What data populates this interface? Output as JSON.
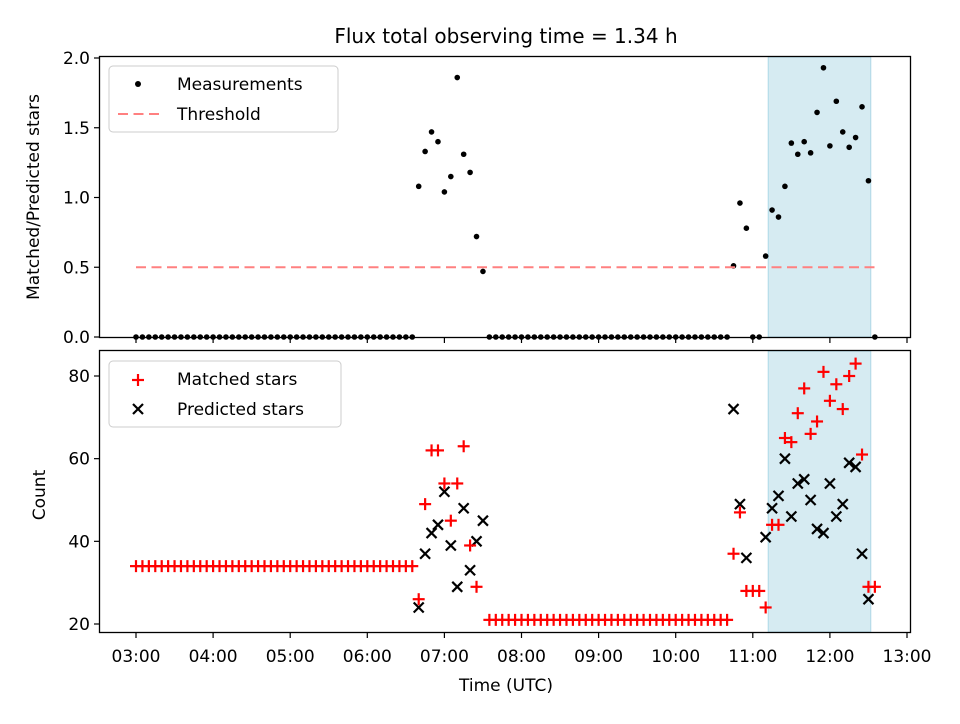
{
  "chart_data": [
    {
      "type": "scatter",
      "title": "Flux total observing time = 1.34 h",
      "xlabel": "",
      "ylabel": "Matched/Predicted stars",
      "ylim": [
        0,
        2.0
      ],
      "yticks": [
        "0.0",
        "0.5",
        "1.0",
        "1.5",
        "2.0"
      ],
      "xlim_hours": [
        2.5,
        13.05
      ],
      "xticks": [
        "03:00",
        "04:00",
        "05:00",
        "06:00",
        "07:00",
        "08:00",
        "09:00",
        "10:00",
        "11:00",
        "12:00",
        "13:00"
      ],
      "sample_start_hour": 3.0,
      "sample_step_minutes": 5,
      "threshold": {
        "name": "Threshold",
        "value": 0.5,
        "color": "#ff8080",
        "style": "dashed"
      },
      "highlight_span_hours": [
        11.2,
        12.53
      ],
      "highlight_color": "#add8e6",
      "series": [
        {
          "name": "Measurements",
          "color": "#000000",
          "marker": "dot",
          "values": [
            0,
            0,
            0,
            0,
            0,
            0,
            0,
            0,
            0,
            0,
            0,
            0,
            0,
            0,
            0,
            0,
            0,
            0,
            0,
            0,
            0,
            0,
            0,
            0,
            0,
            0,
            0,
            0,
            0,
            0,
            0,
            0,
            0,
            0,
            0,
            0,
            0,
            0,
            0,
            0,
            0,
            0,
            0,
            0,
            1.08,
            1.33,
            1.47,
            1.4,
            1.04,
            1.15,
            1.86,
            1.31,
            1.18,
            0.72,
            0.47,
            0,
            0,
            0,
            0,
            0,
            0,
            0,
            0,
            0,
            0,
            0,
            0,
            0,
            0,
            0,
            0,
            0,
            0,
            0,
            0,
            0,
            0,
            0,
            0,
            0,
            0,
            0,
            0,
            0,
            0,
            0,
            0,
            0,
            0,
            0,
            0,
            0,
            0,
            0.51,
            0.96,
            0.78,
            0,
            0,
            0.58,
            0.91,
            0.86,
            1.08,
            1.39,
            1.31,
            1.4,
            1.32,
            1.61,
            1.93,
            1.37,
            1.69,
            1.47,
            1.36,
            1.43,
            1.65,
            1.12,
            0
          ]
        }
      ],
      "legend": {
        "placement": "top-left",
        "entries": [
          "Measurements",
          "Threshold"
        ]
      }
    },
    {
      "type": "scatter",
      "title": "",
      "xlabel": "Time (UTC)",
      "ylabel": "Count",
      "ylim": [
        18,
        86
      ],
      "yticks": [
        "20",
        "40",
        "60",
        "80"
      ],
      "xticks": [
        "03:00",
        "04:00",
        "05:00",
        "06:00",
        "07:00",
        "08:00",
        "09:00",
        "10:00",
        "11:00",
        "12:00",
        "13:00"
      ],
      "sample_start_hour": 3.0,
      "sample_step_minutes": 5,
      "highlight_span_hours": [
        11.2,
        12.53
      ],
      "series": [
        {
          "name": "Matched stars",
          "color": "#ff0000",
          "marker": "plus",
          "values": [
            34,
            34,
            34,
            34,
            34,
            34,
            34,
            34,
            34,
            34,
            34,
            34,
            34,
            34,
            34,
            34,
            34,
            34,
            34,
            34,
            34,
            34,
            34,
            34,
            34,
            34,
            34,
            34,
            34,
            34,
            34,
            34,
            34,
            34,
            34,
            34,
            34,
            34,
            34,
            34,
            34,
            34,
            34,
            34,
            26,
            49,
            62,
            62,
            54,
            45,
            54,
            63,
            39,
            29,
            null,
            21,
            21,
            21,
            21,
            21,
            21,
            21,
            21,
            21,
            21,
            21,
            21,
            21,
            21,
            21,
            21,
            21,
            21,
            21,
            21,
            21,
            21,
            21,
            21,
            21,
            21,
            21,
            21,
            21,
            21,
            21,
            21,
            21,
            21,
            21,
            21,
            21,
            21,
            37,
            47,
            28,
            28,
            28,
            24,
            44,
            44,
            65,
            64,
            71,
            77,
            66,
            69,
            81,
            74,
            78,
            72,
            80,
            83,
            61,
            29,
            29
          ]
        },
        {
          "name": "Predicted stars",
          "color": "#000000",
          "marker": "x",
          "values": [
            null,
            null,
            null,
            null,
            null,
            null,
            null,
            null,
            null,
            null,
            null,
            null,
            null,
            null,
            null,
            null,
            null,
            null,
            null,
            null,
            null,
            null,
            null,
            null,
            null,
            null,
            null,
            null,
            null,
            null,
            null,
            null,
            null,
            null,
            null,
            null,
            null,
            null,
            null,
            null,
            null,
            null,
            null,
            null,
            24,
            37,
            42,
            44,
            52,
            39,
            29,
            48,
            33,
            40,
            45,
            null,
            null,
            null,
            null,
            null,
            null,
            null,
            null,
            null,
            null,
            null,
            null,
            null,
            null,
            null,
            null,
            null,
            null,
            null,
            null,
            null,
            null,
            null,
            null,
            null,
            null,
            null,
            null,
            null,
            null,
            null,
            null,
            null,
            null,
            null,
            null,
            null,
            null,
            72,
            49,
            36,
            null,
            null,
            41,
            48,
            51,
            60,
            46,
            54,
            55,
            50,
            43,
            42,
            54,
            46,
            49,
            59,
            58,
            37,
            26,
            null
          ]
        }
      ],
      "legend": {
        "placement": "top-left",
        "entries": [
          "Matched stars",
          "Predicted stars"
        ]
      }
    }
  ]
}
